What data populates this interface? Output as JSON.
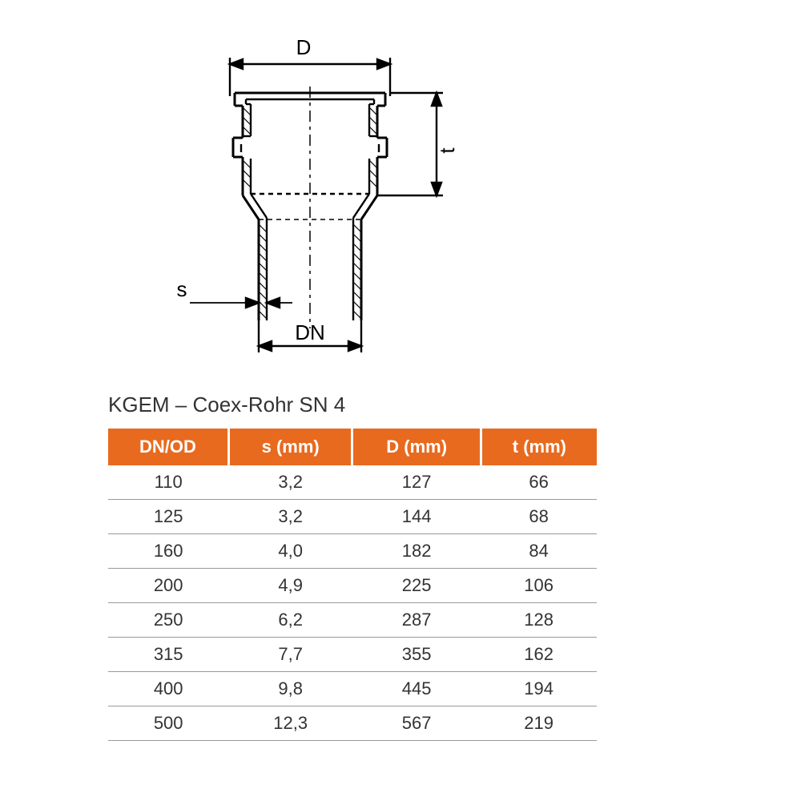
{
  "diagram": {
    "labels": {
      "D": "D",
      "t": "t",
      "s": "s",
      "DN": "DN"
    },
    "stroke": "#000000",
    "stroke_width": 2.4,
    "dash": "6,5",
    "label_fontsize": 26,
    "label_color": "#000000"
  },
  "table": {
    "title": "KGEM – Coex-Rohr SN 4",
    "header_bg": "#e86a1f",
    "header_fg": "#ffffff",
    "row_color": "#333333",
    "border_color": "#999999",
    "columns": [
      "DN/OD",
      "s (mm)",
      "D (mm)",
      "t (mm)"
    ],
    "rows": [
      [
        "110",
        "3,2",
        "127",
        "66"
      ],
      [
        "125",
        "3,2",
        "144",
        "68"
      ],
      [
        "160",
        "4,0",
        "182",
        "84"
      ],
      [
        "200",
        "4,9",
        "225",
        "106"
      ],
      [
        "250",
        "6,2",
        "287",
        "128"
      ],
      [
        "315",
        "7,7",
        "355",
        "162"
      ],
      [
        "400",
        "9,8",
        "445",
        "194"
      ],
      [
        "500",
        "12,3",
        "567",
        "219"
      ]
    ]
  }
}
